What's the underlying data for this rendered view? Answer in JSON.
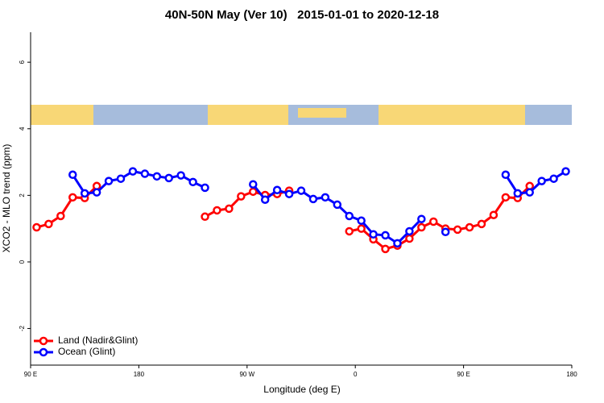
{
  "chart_data": {
    "type": "line",
    "title": "40N-50N May (Ver 10)   2015-01-01 to 2020-12-18",
    "x_label": "Longitude (deg E)",
    "y_label": "XCO2 - MLO trend (ppm)",
    "x": [
      95,
      105,
      115,
      125,
      135,
      145,
      155,
      165,
      175,
      185,
      195,
      205,
      215,
      225,
      235,
      245,
      255,
      265,
      275,
      285,
      295,
      305,
      315,
      325,
      335,
      345,
      355,
      365,
      375,
      385,
      395,
      405,
      415,
      425,
      435,
      445,
      455,
      465,
      475,
      485,
      495,
      505,
      515,
      525,
      535
    ],
    "series": [
      {
        "name": "Land (Nadir&Glint)",
        "color": "#ff0000",
        "values": [
          1.04,
          1.14,
          1.38,
          1.94,
          1.92,
          2.28,
          null,
          null,
          null,
          null,
          null,
          null,
          null,
          null,
          1.36,
          1.55,
          1.6,
          1.97,
          2.11,
          2.01,
          2.04,
          2.14,
          null,
          null,
          null,
          null,
          0.92,
          1.0,
          0.68,
          0.39,
          0.49,
          0.7,
          1.04,
          1.21,
          1.0,
          0.97,
          1.04,
          1.14,
          1.41,
          1.94,
          1.92,
          2.28,
          null,
          null,
          null
        ]
      },
      {
        "name": "Ocean (Glint)",
        "color": "#0000ff",
        "values": [
          null,
          null,
          null,
          2.62,
          2.06,
          2.09,
          2.43,
          2.5,
          2.72,
          2.65,
          2.57,
          2.52,
          2.6,
          2.4,
          2.23,
          null,
          null,
          null,
          2.33,
          1.87,
          2.16,
          2.04,
          2.14,
          1.89,
          1.94,
          1.72,
          1.38,
          1.24,
          0.83,
          0.8,
          0.56,
          0.92,
          1.29,
          null,
          0.9,
          null,
          null,
          null,
          null,
          2.62,
          2.06,
          2.09,
          2.43,
          2.5,
          2.72
        ]
      }
    ],
    "xlim": [
      90,
      540
    ],
    "xticks": [
      {
        "value": 90,
        "label": "90 E"
      },
      180,
      {
        "value": 270,
        "label": "90 W"
      },
      {
        "value": 360,
        "label": "0"
      },
      {
        "value": 450,
        "label": "90 E"
      },
      {
        "value": 540,
        "label": "180"
      }
    ],
    "ylim": [
      -3.1,
      6.9
    ],
    "yticks": [
      -2,
      0,
      2,
      4,
      6
    ],
    "legend": "bottom-left"
  }
}
